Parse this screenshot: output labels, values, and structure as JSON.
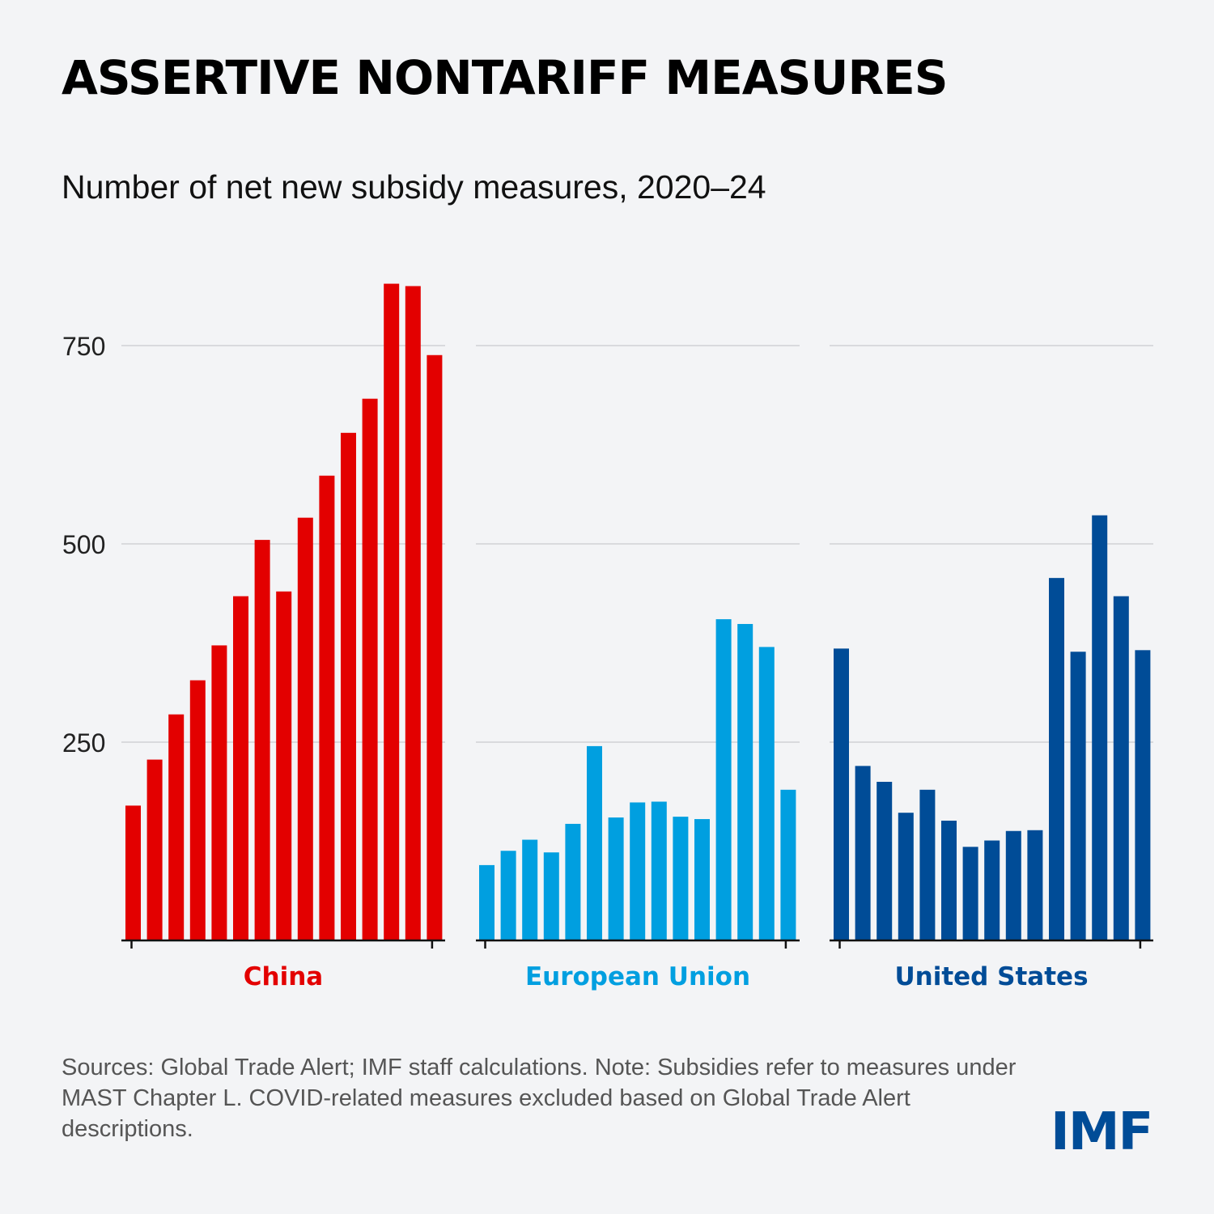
{
  "title": "ASSERTIVE NONTARIFF MEASURES",
  "subtitle": "Number of net new subsidy measures, 2020–24",
  "note": "Sources: Global Trade Alert; IMF staff calculations. Note: Subsidies refer to measures under MAST Chapter L. COVID-related measures excluded based on Global Trade Alert descriptions.",
  "logo": "IMF",
  "chart_data": {
    "type": "bar",
    "title": "Number of net new subsidy measures, 2020–24",
    "xlabel": "",
    "ylabel": "",
    "ylim": [
      0,
      850
    ],
    "yticks": [
      250,
      500,
      750
    ],
    "grid": true,
    "series": [
      {
        "name": "China",
        "color": "#e30000",
        "values": [
          170,
          228,
          285,
          328,
          372,
          434,
          505,
          440,
          533,
          586,
          640,
          683,
          828,
          825,
          738
        ]
      },
      {
        "name": "European Union",
        "color": "#009fe0",
        "values": [
          95,
          113,
          127,
          111,
          147,
          245,
          155,
          174,
          175,
          156,
          153,
          405,
          399,
          370,
          190
        ]
      },
      {
        "name": "United States",
        "color": "#004c97",
        "values": [
          368,
          220,
          200,
          161,
          190,
          151,
          118,
          126,
          138,
          139,
          457,
          364,
          536,
          434,
          366
        ]
      }
    ]
  }
}
